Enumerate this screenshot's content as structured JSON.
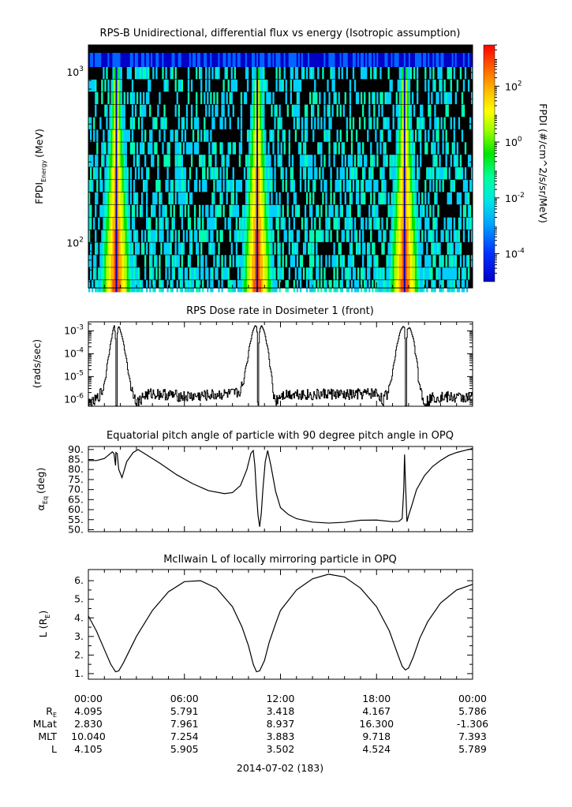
{
  "chart_data": [
    {
      "type": "heatmap",
      "title": "RPS-B  Unidirectional, differential flux vs energy (Isotropic assumption)",
      "ylabel": "FPDI",
      "ylabel_sub": "Energy",
      "ylabel_unit": "(MeV)",
      "yscale": "log",
      "ylim": [
        55,
        1450
      ],
      "yticks": [
        {
          "value": 100,
          "label": "10",
          "exp": "2"
        },
        {
          "value": 1000,
          "label": "10",
          "exp": "3"
        }
      ],
      "x_hours_range": [
        0,
        24
      ],
      "energy_bins": 18,
      "belt_passes": [
        {
          "center": 1.75,
          "gap_center": 1.78
        },
        {
          "center": 10.55,
          "gap_center": 10.58
        },
        {
          "center": 19.75,
          "gap_center": 19.78
        }
      ],
      "colorbar": {
        "label": "FPDI (#/cm^2/s/sr/MeV)",
        "scale": "log",
        "range": [
          1e-05,
          3000
        ],
        "ticks": [
          {
            "value": 0.0001,
            "label": "10",
            "exp": "-4"
          },
          {
            "value": 0.01,
            "label": "10",
            "exp": "-2"
          },
          {
            "value": 1,
            "label": "10",
            "exp": "0"
          },
          {
            "value": 100,
            "label": "10",
            "exp": "2"
          }
        ],
        "colors": [
          "#0000c8",
          "#0064ff",
          "#00d0ff",
          "#00ffb4",
          "#00e600",
          "#b4ff00",
          "#ffff00",
          "#ffb400",
          "#ff5000",
          "#ff0000"
        ]
      }
    },
    {
      "type": "line",
      "title": "RPS  Dose rate in Dosimeter 1 (front)",
      "ylabel": "(rads/sec)",
      "yscale": "log",
      "ylim": [
        5e-07,
        0.0025
      ],
      "yticks": [
        {
          "value": 0.001,
          "label": "10",
          "exp": "-3"
        },
        {
          "value": 0.0001,
          "label": "10",
          "exp": "-4"
        },
        {
          "value": 1e-05,
          "label": "10",
          "exp": "-5"
        },
        {
          "value": 1e-06,
          "label": "10",
          "exp": "-6"
        }
      ],
      "x_hours": [
        0.0,
        0.3,
        0.6,
        0.9,
        1.1,
        1.3,
        1.45,
        1.55,
        1.6,
        1.65,
        1.72,
        1.76,
        1.8,
        1.86,
        1.92,
        2.0,
        2.1,
        2.25,
        2.45,
        2.65,
        2.85,
        3.0,
        3.2,
        3.5,
        4.0,
        5.0,
        6.0,
        7.0,
        7.5,
        8.0,
        9.0,
        9.4,
        9.7,
        9.95,
        10.15,
        10.3,
        10.4,
        10.5,
        10.55,
        10.62,
        10.7,
        10.8,
        10.95,
        11.1,
        11.3,
        11.5,
        11.7,
        12.0,
        13.0,
        14.0,
        15.0,
        16.0,
        17.0,
        18.0,
        18.4,
        18.7,
        18.95,
        19.15,
        19.35,
        19.5,
        19.65,
        19.72,
        19.78,
        19.85,
        19.92,
        20.05,
        20.2,
        20.4,
        20.6,
        20.85,
        21.1,
        21.5,
        22.0,
        23.0,
        24.0
      ],
      "values": [
        7e-07,
        7e-07,
        1.2e-06,
        2.5e-06,
        1e-05,
        0.0001,
        0.0005,
        0.0013,
        0.0017,
        0.0008,
        5e-07,
        5e-07,
        0.0008,
        0.0016,
        0.0014,
        0.0009,
        0.0005,
        0.00012,
        1.5e-05,
        3e-06,
        1.5e-06,
        7e-07,
        9e-07,
        1.5e-06,
        1.8e-06,
        1.6e-06,
        1.3e-06,
        1.4e-06,
        1.5e-06,
        1.6e-06,
        1.7e-06,
        2e-06,
        5e-06,
        5e-05,
        0.0004,
        0.0012,
        0.0017,
        0.0015,
        5e-07,
        5e-07,
        0.0012,
        0.0017,
        0.001,
        0.0003,
        3e-05,
        2e-06,
        8e-07,
        1.6e-06,
        1.8e-06,
        1.5e-06,
        1.8e-06,
        1.5e-06,
        1.7e-06,
        1.9e-06,
        8e-07,
        2e-06,
        8e-06,
        6e-05,
        0.0004,
        0.0011,
        0.0016,
        0.0014,
        5e-07,
        5e-07,
        0.0012,
        0.0014,
        0.0007,
        0.0001,
        6e-06,
        1e-06,
        8e-07,
        1.2e-06,
        1.3e-06,
        1.2e-06,
        1.2e-06
      ],
      "noise": "step"
    },
    {
      "type": "line",
      "title": "Equatorial pitch angle of particle with 90 degree pitch angle in OPQ",
      "ylabel": "α",
      "ylabel_sub": "Eq",
      "ylabel_unit": "(deg)",
      "ylim": [
        49,
        91.5
      ],
      "yticks": [
        {
          "value": 90,
          "label": "90."
        },
        {
          "value": 85,
          "label": "85."
        },
        {
          "value": 80,
          "label": "80."
        },
        {
          "value": 75,
          "label": "75."
        },
        {
          "value": 70,
          "label": "70."
        },
        {
          "value": 65,
          "label": "65."
        },
        {
          "value": 60,
          "label": "60."
        },
        {
          "value": 55,
          "label": "55."
        },
        {
          "value": 50,
          "label": "50."
        }
      ],
      "x_hours": [
        0,
        0.5,
        1.0,
        1.3,
        1.5,
        1.6,
        1.7,
        1.72,
        1.8,
        1.9,
        2.1,
        2.4,
        2.8,
        3.1,
        3.5,
        4.5,
        5.5,
        6.5,
        7.5,
        8.5,
        9.0,
        9.5,
        9.9,
        10.15,
        10.3,
        10.4,
        10.5,
        10.6,
        10.7,
        10.8,
        10.9,
        11.05,
        11.2,
        11.4,
        11.7,
        12.0,
        12.5,
        13.0,
        14.0,
        15.0,
        16.0,
        17.0,
        18.0,
        19.0,
        19.4,
        19.6,
        19.7,
        19.75,
        19.8,
        19.9,
        20.0,
        20.2,
        20.5,
        21.0,
        21.5,
        22.0,
        22.5,
        23.0,
        23.5,
        24.0
      ],
      "values": [
        84.5,
        84.5,
        85.5,
        87.5,
        88.8,
        88.0,
        82.0,
        88.5,
        88.0,
        80.0,
        76.0,
        84.0,
        88.5,
        90.0,
        88.0,
        83.0,
        77.5,
        73.0,
        69.5,
        68.0,
        68.5,
        72.0,
        80.0,
        88.0,
        89.5,
        82.0,
        68.0,
        57.0,
        51.5,
        58.0,
        70.0,
        84.0,
        89.5,
        82.0,
        69.0,
        61.0,
        57.5,
        55.5,
        53.8,
        53.3,
        53.7,
        54.7,
        54.8,
        54.0,
        54.2,
        55.5,
        70.0,
        87.5,
        75.0,
        54.0,
        57.0,
        62.0,
        70.0,
        77.0,
        81.5,
        84.5,
        87.0,
        88.5,
        89.5,
        90.5
      ]
    },
    {
      "type": "line",
      "title": "McIlwain L of locally mirroring particle in OPQ",
      "ylabel": "L (R",
      "ylabel_sub": "E",
      "ylabel_unit": ")",
      "ylim": [
        0.7,
        6.6
      ],
      "yticks": [
        {
          "value": 6,
          "label": "6."
        },
        {
          "value": 5,
          "label": "5."
        },
        {
          "value": 4,
          "label": "4."
        },
        {
          "value": 3,
          "label": "3."
        },
        {
          "value": 2,
          "label": "2."
        },
        {
          "value": 1,
          "label": "1."
        }
      ],
      "x_hours": [
        0,
        0.5,
        1.0,
        1.4,
        1.7,
        1.9,
        2.2,
        2.6,
        3.0,
        4.0,
        5.0,
        6.0,
        7.0,
        8.0,
        9.0,
        9.6,
        10.0,
        10.3,
        10.5,
        10.7,
        11.0,
        11.3,
        11.7,
        12.0,
        13.0,
        14.0,
        15.0,
        16.0,
        17.0,
        18.0,
        18.8,
        19.3,
        19.6,
        19.8,
        20.0,
        20.3,
        20.7,
        21.2,
        22.0,
        23.0,
        24.0
      ],
      "values": [
        4.1,
        3.3,
        2.3,
        1.5,
        1.1,
        1.15,
        1.6,
        2.3,
        3.0,
        4.4,
        5.4,
        5.95,
        6.0,
        5.6,
        4.6,
        3.5,
        2.5,
        1.5,
        1.1,
        1.15,
        1.7,
        2.7,
        3.7,
        4.4,
        5.5,
        6.1,
        6.35,
        6.2,
        5.6,
        4.6,
        3.3,
        2.1,
        1.4,
        1.2,
        1.3,
        1.9,
        2.9,
        3.8,
        4.8,
        5.5,
        5.8
      ]
    }
  ],
  "x_ticks": [
    "00:00",
    "06:00",
    "12:00",
    "18:00",
    "00:00"
  ],
  "footer": {
    "row_labels": [
      {
        "main": "R",
        "sub": "E"
      },
      {
        "main": "MLat",
        "sub": ""
      },
      {
        "main": "MLT",
        "sub": ""
      },
      {
        "main": "L",
        "sub": ""
      }
    ],
    "rows": [
      [
        "4.095",
        "5.791",
        "3.418",
        "4.167",
        "5.786"
      ],
      [
        "2.830",
        "7.961",
        "8.937",
        "16.300",
        "-1.306"
      ],
      [
        "10.040",
        "7.254",
        "3.883",
        "9.718",
        "7.393"
      ],
      [
        "4.105",
        "5.905",
        "3.502",
        "4.524",
        "5.789"
      ]
    ],
    "date_label": "2014-07-02 (183)"
  }
}
